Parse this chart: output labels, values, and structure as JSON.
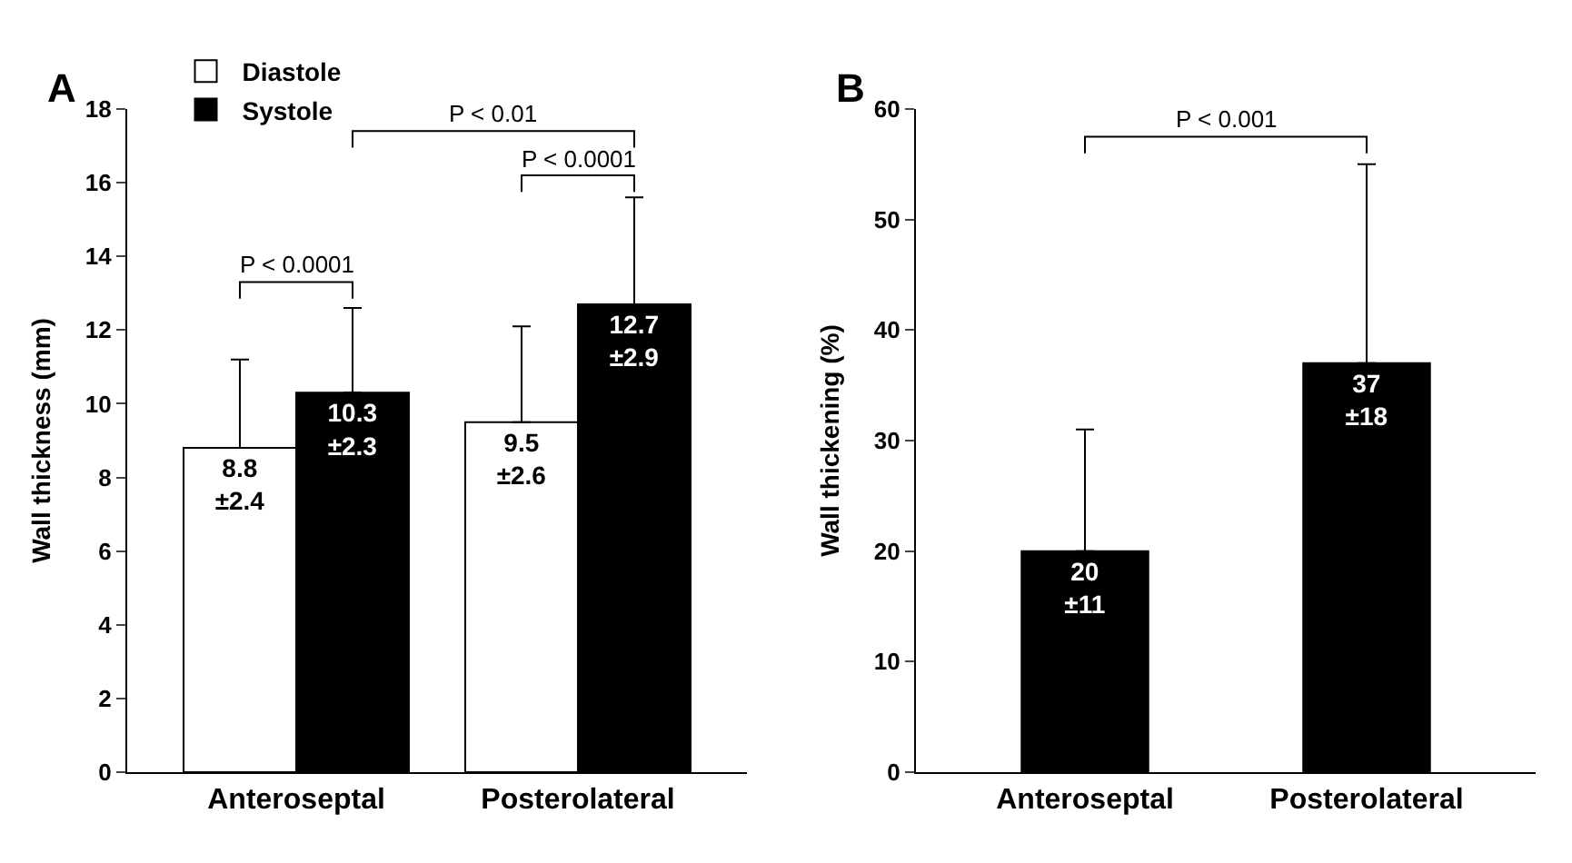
{
  "chart_data": [
    {
      "type": "bar",
      "title": "A",
      "ylabel": "Wall thickness (mm)",
      "categories": [
        "Anteroseptal",
        "Posterolateral"
      ],
      "ylim": [
        0,
        18
      ],
      "yticks": [
        0,
        2,
        4,
        6,
        8,
        10,
        12,
        14,
        16,
        18
      ],
      "legend": "top left",
      "series": [
        {
          "name": "Diastole",
          "color": "#ffffff",
          "values": [
            8.8,
            9.5
          ],
          "errors": [
            [
              8.8,
              11.2
            ],
            [
              9.5,
              12.1
            ]
          ],
          "value_labels": [
            "8.8\n±2.4",
            "9.5\n±2.6"
          ]
        },
        {
          "name": "Systole",
          "color": "#000000",
          "values": [
            10.3,
            12.7
          ],
          "errors": [
            [
              10.3,
              12.6
            ],
            [
              12.7,
              15.6
            ]
          ],
          "value_labels": [
            "10.3\n±2.3",
            "12.7\n±2.9"
          ]
        }
      ],
      "annotations": [
        "P < 0.0001",
        "P < 0.01",
        "P < 0.0001"
      ]
    },
    {
      "type": "bar",
      "title": "B",
      "ylabel": "Wall thickening (%)",
      "categories": [
        "Anteroseptal",
        "Posterolateral"
      ],
      "ylim": [
        0,
        60
      ],
      "yticks": [
        0,
        10,
        20,
        30,
        40,
        50,
        60
      ],
      "legend": false,
      "series": [
        {
          "color": "#000000",
          "values": [
            20,
            37
          ],
          "errors": [
            [
              20,
              31
            ],
            [
              37,
              55
            ]
          ],
          "value_labels": [
            "20\n±11",
            "37\n±18"
          ]
        }
      ],
      "annotations": [
        "P < 0.001"
      ]
    }
  ]
}
